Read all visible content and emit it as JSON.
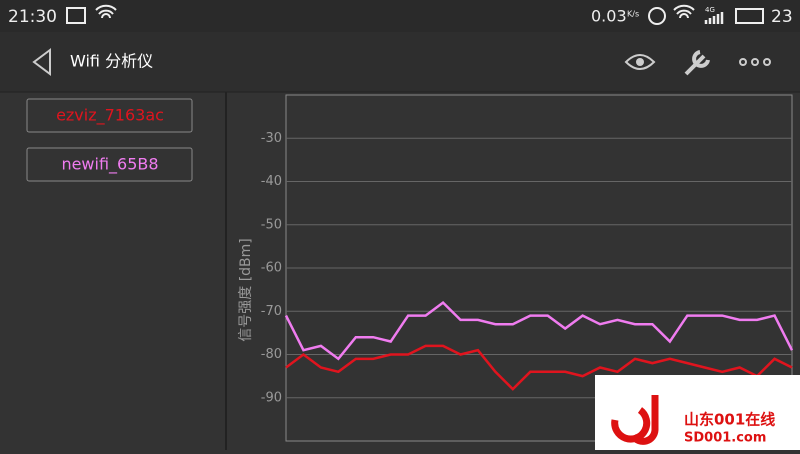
{
  "status_bar": {
    "time": "21:30",
    "speed": "0.03",
    "speed_unit": "K/s",
    "network": "4G",
    "battery": "23"
  },
  "app_bar": {
    "title": "Wifi 分析仪"
  },
  "networks": [
    "ezviz_7163ac",
    "newifi_65B8"
  ],
  "chart_data": {
    "type": "line",
    "ylabel": "信号强度 [dBm]",
    "ylim": [
      -100,
      -20
    ],
    "yticks": [
      -30,
      -40,
      -50,
      -60,
      -70,
      -80,
      -90
    ],
    "grid": true,
    "series": [
      {
        "name": "ezviz_7163ac",
        "color": "#e0141e",
        "values": [
          -83,
          -80,
          -83,
          -84,
          -81,
          -81,
          -80,
          -80,
          -78,
          -78,
          -80,
          -79,
          -84,
          -88,
          -84,
          -84,
          -84,
          -85,
          -83,
          -84,
          -81,
          -82,
          -81,
          -82,
          -83,
          -84,
          -83,
          -85,
          -81,
          -83
        ]
      },
      {
        "name": "newifi_65B8",
        "color": "#f07cf0",
        "values": [
          -71,
          -79,
          -78,
          -81,
          -76,
          -76,
          -77,
          -71,
          -71,
          -68,
          -72,
          -72,
          -73,
          -73,
          -71,
          -71,
          -74,
          -71,
          -73,
          -72,
          -73,
          -73,
          -77,
          -71,
          -71,
          -71,
          -72,
          -72,
          -71,
          -79
        ]
      }
    ]
  },
  "watermark": {
    "brand": "山东001在线",
    "site": "SD001.com"
  }
}
